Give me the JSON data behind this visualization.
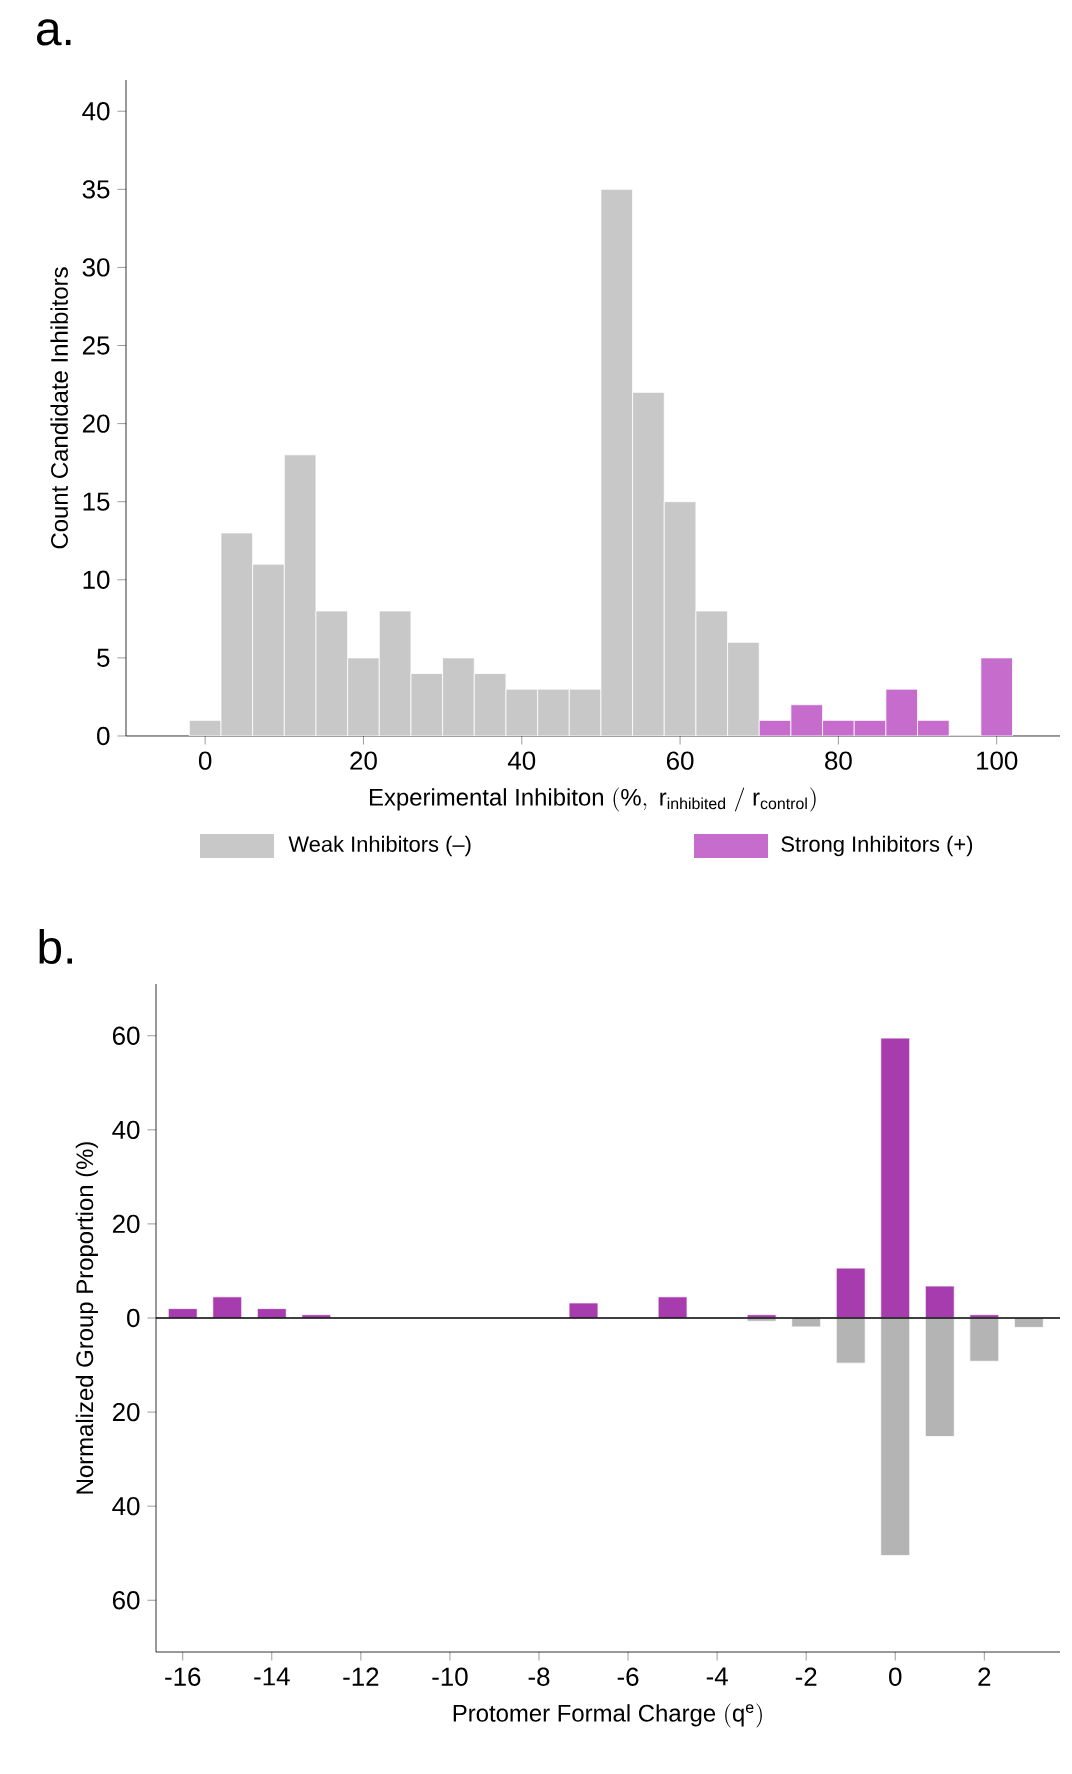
{
  "chart_data": [
    {
      "type": "histogram",
      "title": "a.",
      "xlabel": "\\mathrm{Experimental\\ Inhibiton\\ (\\%,\\ r_{inhibited}\\ /\\ r_{control})}",
      "ylabel": "Count Candidate Inhibitors",
      "bins": [
        -2,
        2,
        6,
        10,
        14,
        18,
        22,
        26,
        30,
        34,
        38,
        42,
        46,
        50,
        54,
        58,
        62,
        66,
        70,
        74,
        78,
        82,
        86,
        90,
        94,
        98,
        102
      ],
      "series": [
        {
          "name": "Weak Inhibitors (–)",
          "color": "#c8c8c8",
          "values": [
            1,
            13,
            11,
            18,
            8,
            5,
            8,
            4,
            5,
            4,
            3,
            3,
            3,
            35,
            22,
            15,
            8,
            6,
            null,
            null,
            null,
            null,
            null,
            null,
            null,
            null
          ]
        },
        {
          "name": "Strong Inhibitors (+)",
          "color": "#c66ccc",
          "values": [
            null,
            null,
            null,
            null,
            null,
            null,
            null,
            null,
            null,
            null,
            null,
            null,
            null,
            null,
            null,
            null,
            null,
            null,
            1,
            2,
            1,
            1,
            3,
            1,
            0,
            5
          ]
        }
      ],
      "xlim": [
        -10,
        108
      ],
      "ylim": [
        0,
        42
      ],
      "xticks": [
        0,
        20,
        40,
        60,
        80,
        100
      ],
      "yticks": [
        0,
        5,
        10,
        15,
        20,
        25,
        30,
        35,
        40
      ],
      "legend": "bottom"
    },
    {
      "type": "bar",
      "title": "b.",
      "xlabel": "\\mathrm{Protomer\\ Formal\\ Charge\\ (q^{e})}",
      "ylabel": "Normalized Group Proportion (%)",
      "series": [
        {
          "color": "#a63cae",
          "x": [
            -16,
            -15,
            -14,
            -13,
            -7,
            -5,
            -3,
            -1,
            0,
            1,
            2
          ],
          "values": [
            2.0,
            4.5,
            2.0,
            0.7,
            3.2,
            4.5,
            0.7,
            10.6,
            59.5,
            6.8,
            0.7
          ]
        },
        {
          "color": "#b4b4b4",
          "x": [
            -3,
            -2,
            -1,
            0,
            1,
            2,
            3
          ],
          "values": [
            -0.7,
            -1.9,
            -9.6,
            -50.5,
            -25.2,
            -9.2,
            -2.0
          ]
        }
      ],
      "xlim": [
        -16.6,
        3.7
      ],
      "ylim": [
        -71,
        71
      ],
      "xticks": [
        -16,
        -14,
        -12,
        -10,
        -8,
        -6,
        -4,
        -2,
        0,
        2
      ],
      "yticks": [
        {
          "value": -60,
          "label": "60"
        },
        {
          "value": -40,
          "label": "40"
        },
        {
          "value": -20,
          "label": "20"
        },
        0,
        20,
        40,
        60
      ],
      "ref_lines": [
        {
          "axis": "y",
          "value": 0,
          "color": "#000000"
        }
      ]
    }
  ]
}
